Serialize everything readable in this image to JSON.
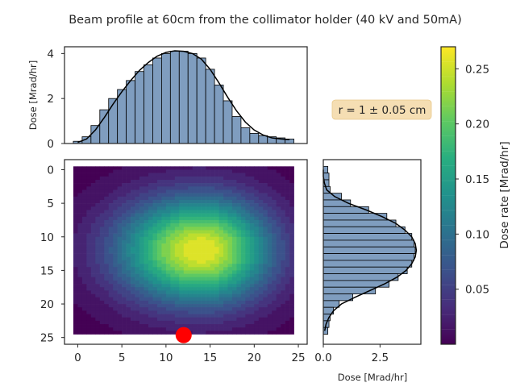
{
  "chart_data": {
    "type": "heatmap",
    "title": "Beam profile at 60cm from the collimator holder (40 kV and 50mA)",
    "annotation": "r = 1 ± 0.05 cm",
    "colors": {
      "bar_fill": "#7f9dbf",
      "bar_edge": "#000000",
      "curve": "#000000",
      "source_marker": "#ff0000",
      "annotation_box": "#f5deb3"
    },
    "main": {
      "type": "heatmap",
      "colormap": "viridis",
      "xlim": [
        -1.5,
        26
      ],
      "ylim_inverted": [
        26,
        -1.5
      ],
      "extent": {
        "x": [
          -0.5,
          24.5
        ],
        "y": [
          -0.5,
          24.5
        ]
      },
      "xticks": [
        0,
        5,
        10,
        15,
        20,
        25
      ],
      "yticks": [
        0,
        5,
        10,
        15,
        20,
        25
      ],
      "peak": {
        "x": 14,
        "y": 12,
        "value": 0.27
      },
      "spread": {
        "sx_left": 6.5,
        "sx_right": 5.5,
        "sy": 5.5
      },
      "background_value": 0.005,
      "source_marker": {
        "x": 12,
        "y": 25,
        "label": ""
      }
    },
    "top": {
      "type": "bar",
      "ylabel": "Dose [Mrad/hr]",
      "ylim": [
        0,
        4.3
      ],
      "yticks": [
        0,
        2,
        4
      ],
      "x": [
        0,
        1,
        2,
        3,
        4,
        5,
        6,
        7,
        8,
        9,
        10,
        11,
        12,
        13,
        14,
        15,
        16,
        17,
        18,
        19,
        20,
        21,
        22,
        23,
        24
      ],
      "values": [
        0.1,
        0.3,
        0.8,
        1.5,
        2.0,
        2.4,
        2.8,
        3.2,
        3.5,
        3.8,
        4.0,
        4.1,
        4.1,
        4.0,
        3.8,
        3.3,
        2.6,
        1.9,
        1.2,
        0.7,
        0.45,
        0.35,
        0.3,
        0.25,
        0.2
      ],
      "fit": [
        0.05,
        0.2,
        0.6,
        1.15,
        1.75,
        2.3,
        2.8,
        3.25,
        3.6,
        3.88,
        4.05,
        4.12,
        4.1,
        4.0,
        3.75,
        3.3,
        2.7,
        2.05,
        1.45,
        0.95,
        0.6,
        0.38,
        0.25,
        0.2,
        0.17
      ]
    },
    "right": {
      "type": "bar",
      "orientation": "horizontal",
      "xlabel": "Dose [Mrad/hr]",
      "xlim": [
        0,
        4.3
      ],
      "xticks": [
        0.0,
        2.5
      ],
      "xtick_labels": [
        "0.0",
        "2.5"
      ],
      "y": [
        0,
        1,
        2,
        3,
        4,
        5,
        6,
        7,
        8,
        9,
        10,
        11,
        12,
        13,
        14,
        15,
        16,
        17,
        18,
        19,
        20,
        21,
        22,
        23,
        24
      ],
      "values": [
        0.2,
        0.25,
        0.25,
        0.3,
        0.8,
        1.2,
        2.0,
        2.8,
        3.2,
        3.6,
        3.9,
        4.0,
        4.05,
        4.0,
        3.9,
        3.7,
        3.3,
        2.9,
        2.3,
        1.3,
        0.7,
        0.45,
        0.3,
        0.25,
        0.2
      ],
      "fit": [
        0.0,
        0.0,
        0.05,
        0.15,
        0.5,
        1.1,
        1.9,
        2.6,
        3.2,
        3.6,
        3.9,
        4.05,
        4.1,
        4.05,
        3.9,
        3.65,
        3.25,
        2.7,
        2.05,
        1.4,
        0.8,
        0.45,
        0.25,
        0.12,
        0.06
      ]
    },
    "colorbar": {
      "label": "Dose rate [Mrad/hr]",
      "range": [
        0.0,
        0.27
      ],
      "ticks": [
        0.05,
        0.1,
        0.15,
        0.2,
        0.25
      ],
      "tick_labels": [
        "0.05",
        "0.10",
        "0.15",
        "0.20",
        "0.25"
      ]
    }
  }
}
